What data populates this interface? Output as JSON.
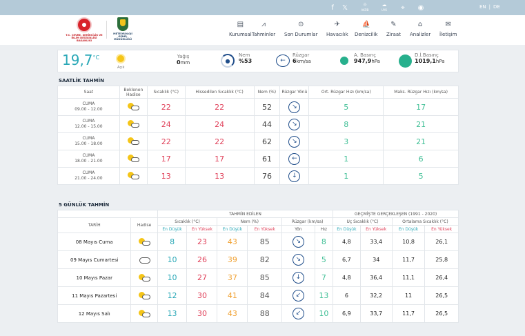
{
  "topbar": {
    "icons": [
      "facebook-icon",
      "x-icon",
      "sun-icon",
      "cloud-sun-icon",
      "location-icon",
      "eye-icon"
    ],
    "icon_labels": {
      "sun": "AKÜB",
      "cloud": "UYK"
    },
    "lang_en": "EN",
    "lang_sep": "|",
    "lang_de": "DE"
  },
  "header": {
    "logo1_text": "T.C. ÇEVRE, ŞEHİRCİLİK VE İKLİM DEĞİŞİKLİĞİ BAKANLIĞI",
    "logo2_text": "METEOROLOJİ GENEL MÜDÜRLÜĞÜ",
    "nav": [
      {
        "label": "Kurumsal",
        "icon": "▤"
      },
      {
        "label": "Tahminler",
        "icon": "⩘"
      },
      {
        "label": "Son Durumlar",
        "icon": "⊙"
      },
      {
        "label": "Havacılık",
        "icon": "✈"
      },
      {
        "label": "Denizcilik",
        "icon": "⛵"
      },
      {
        "label": "Ziraat",
        "icon": "✎"
      },
      {
        "label": "Analizler",
        "icon": "⌂"
      },
      {
        "label": "İletişim",
        "icon": "✉"
      }
    ]
  },
  "current": {
    "temp": "19,7",
    "temp_unit": "°C",
    "sky": "Açık",
    "rain_label": "Yağış",
    "rain_value": "0",
    "rain_unit": "mm",
    "hum_label": "Nem",
    "hum_value": "%53",
    "wind_label": "Rüzgar",
    "wind_value": "6",
    "wind_unit": "km/sa",
    "apress_label": "A. Basınç",
    "apress_value": "947,9",
    "apress_unit": "hPa",
    "dpress_label": "D.İ.Basınç",
    "dpress_value": "1019,1",
    "dpress_unit": "hPa"
  },
  "hourly": {
    "title": "SAATLİK TAHMİN",
    "headers": {
      "saat": "Saat",
      "hadise": "Beklenen Hadise",
      "sicaklik": "Sıcaklık (°C)",
      "hissedilen": "Hissedilen Sıcaklık (°C)",
      "nem": "Nem (%)",
      "yon": "Rüzgar Yönü",
      "ort": "Ort. Rüzgar Hızı (km/sa)",
      "maks": "Maks. Rüzgar Hızı (km/sa)"
    },
    "rows": [
      {
        "day": "CUMA",
        "range": "09.00 - 12.00",
        "temp": "22",
        "feels": "22",
        "hum": "52",
        "dir": "↘",
        "avg": "5",
        "max": "17"
      },
      {
        "day": "CUMA",
        "range": "12.00 - 15.00",
        "temp": "24",
        "feels": "24",
        "hum": "44",
        "dir": "↘",
        "avg": "8",
        "max": "21"
      },
      {
        "day": "CUMA",
        "range": "15.00 - 18.00",
        "temp": "22",
        "feels": "22",
        "hum": "62",
        "dir": "↘",
        "avg": "3",
        "max": "21"
      },
      {
        "day": "CUMA",
        "range": "18.00 - 21.00",
        "temp": "17",
        "feels": "17",
        "hum": "61",
        "dir": "←",
        "avg": "1",
        "max": "6"
      },
      {
        "day": "CUMA",
        "range": "21.00 - 24.00",
        "temp": "13",
        "feels": "13",
        "hum": "76",
        "dir": "↓",
        "avg": "1",
        "max": "5"
      }
    ]
  },
  "daily": {
    "title": "5 GÜNLÜK TAHMİN",
    "h_tahmin": "TAHMİN EDİLEN",
    "h_gecmis": "GEÇMİŞTE GERÇEKLEŞEN (1991 - 2020)",
    "h_tarih": "TARİH",
    "h_hadise": "Hadise",
    "h_sicaklik": "Sıcaklık (°C)",
    "h_nem": "Nem (%)",
    "h_ruzgar": "Rüzgar (km/sa)",
    "h_uc": "Uç Sıcaklık (°C)",
    "h_ort": "Ortalama Sıcaklık (°C)",
    "h_low": "En Düşük",
    "h_high": "En Yüksek",
    "h_yon": "Yön",
    "h_hiz": "Hız",
    "rows": [
      {
        "date": "08 Mayıs Cuma",
        "icon": "sun-cloud",
        "tmin": "8",
        "tmax": "23",
        "hmin": "43",
        "hmax": "85",
        "dir": "↘",
        "speed": "8",
        "umin": "4,8",
        "umax": "33,4",
        "omin": "10,8",
        "omax": "26,1"
      },
      {
        "date": "09 Mayıs Cumartesi",
        "icon": "cloud",
        "tmin": "10",
        "tmax": "26",
        "hmin": "39",
        "hmax": "82",
        "dir": "↘",
        "speed": "5",
        "umin": "6,7",
        "umax": "34",
        "omin": "11,7",
        "omax": "25,8"
      },
      {
        "date": "10 Mayıs Pazar",
        "icon": "sun-cloud",
        "tmin": "10",
        "tmax": "27",
        "hmin": "37",
        "hmax": "85",
        "dir": "↓",
        "speed": "7",
        "umin": "4,8",
        "umax": "36,4",
        "omin": "11,1",
        "omax": "26,4"
      },
      {
        "date": "11 Mayıs Pazartesi",
        "icon": "sun-cloud",
        "tmin": "12",
        "tmax": "30",
        "hmin": "41",
        "hmax": "84",
        "dir": "↙",
        "speed": "13",
        "umin": "6",
        "umax": "32,2",
        "omin": "11",
        "omax": "26,5"
      },
      {
        "date": "12 Mayıs Salı",
        "icon": "sun-cloud",
        "tmin": "13",
        "tmax": "30",
        "hmin": "43",
        "hmax": "88",
        "dir": "↙",
        "speed": "10",
        "umin": "6,9",
        "umax": "33,7",
        "omin": "11,7",
        "omax": "26,5"
      }
    ]
  },
  "colors": {
    "accent": "#2aa8b7",
    "red": "#e0415a",
    "green": "#3fbf95",
    "orange": "#f0a030",
    "navy": "#1f4d8a"
  }
}
